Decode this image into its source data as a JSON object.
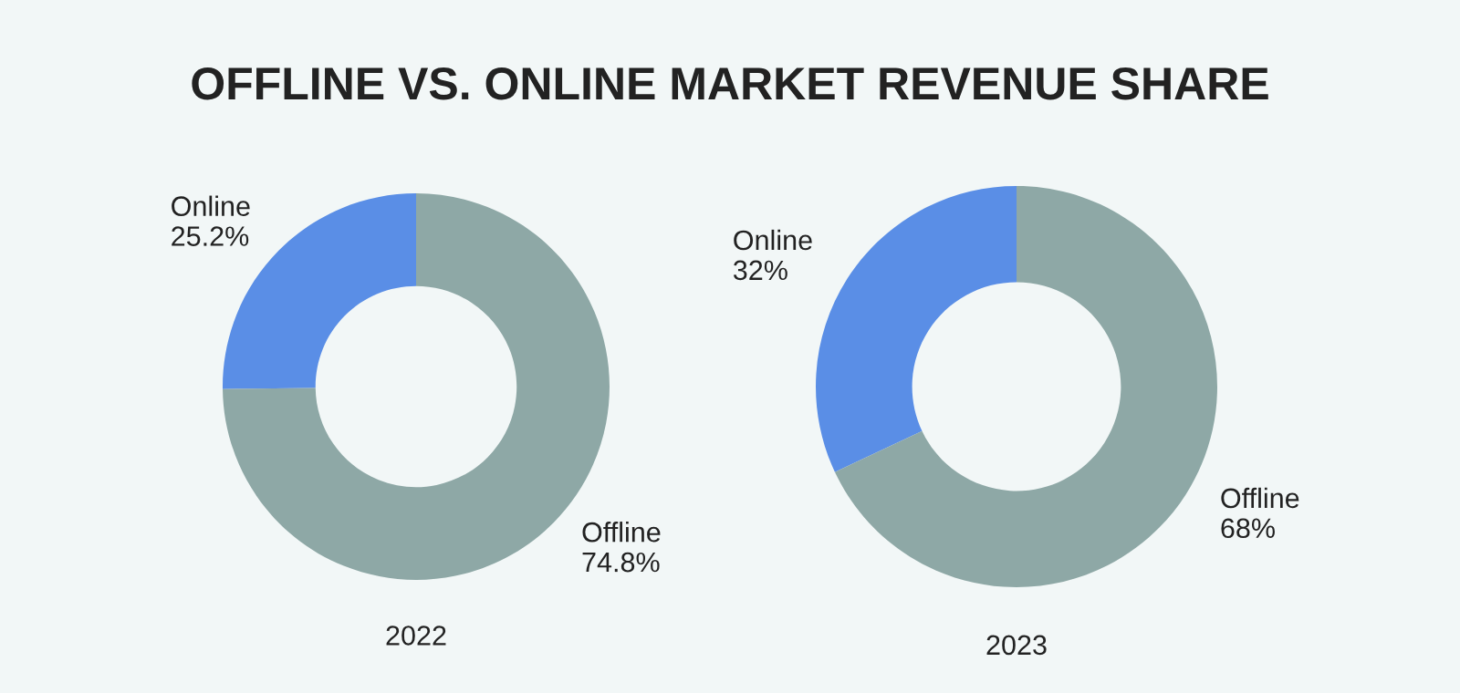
{
  "chart_data": [
    {
      "type": "donut",
      "title": "OFFLINE VS. ONLINE MARKET REVENUE SHARE",
      "xlabel": "2022",
      "categories": [
        "Online",
        "Offline"
      ],
      "values": [
        25.2,
        74.8
      ],
      "value_labels": [
        "25.2%",
        "74.8%"
      ],
      "colors": [
        "#5a8ee6",
        "#8ea8a6"
      ]
    },
    {
      "type": "donut",
      "xlabel": "2023",
      "categories": [
        "Online",
        "Offline"
      ],
      "values": [
        32,
        68
      ],
      "value_labels": [
        "32%",
        "68%"
      ],
      "colors": [
        "#5a8ee6",
        "#8ea8a6"
      ]
    }
  ]
}
